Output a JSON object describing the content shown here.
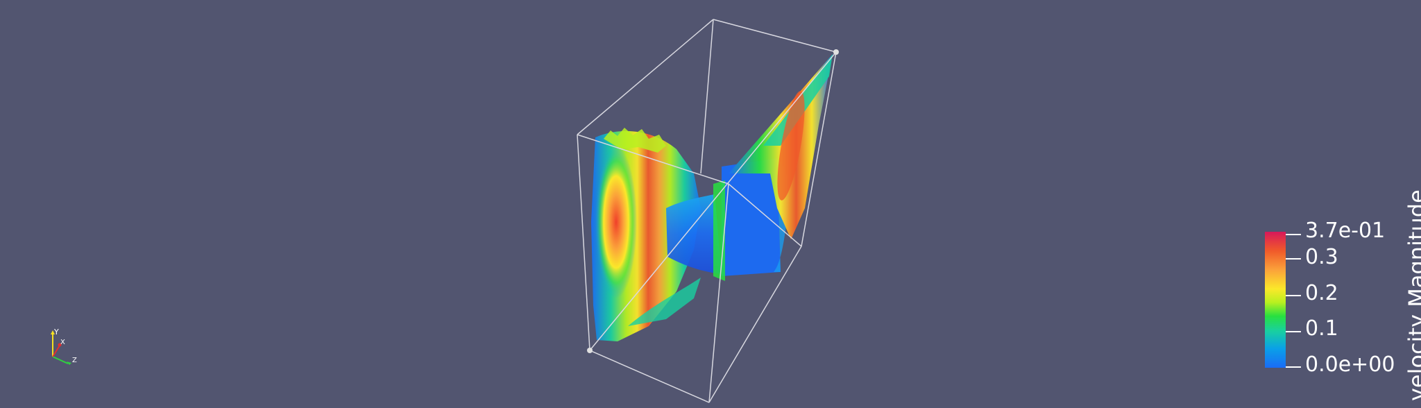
{
  "colors": {
    "background": "#525570",
    "bounding_box": "#d8d8e0",
    "colormap": [
      "#1a6cf5",
      "#0aa0e8",
      "#19d0a0",
      "#28e040",
      "#b8f020",
      "#fbe82a",
      "#fba23a",
      "#f05a2a",
      "#d8185a"
    ]
  },
  "colorbar": {
    "title": "velocity Magnitude",
    "ticks": [
      {
        "label": "3.7e-01",
        "value": 0.37
      },
      {
        "label": "0.3",
        "value": 0.3
      },
      {
        "label": "0.2",
        "value": 0.2
      },
      {
        "label": "0.1",
        "value": 0.1
      },
      {
        "label": "0.0e+00",
        "value": 0.0
      }
    ],
    "range": [
      0.0,
      0.37
    ]
  },
  "orientation_axes": {
    "labels": {
      "y": "Y",
      "x": "X",
      "z": "Z"
    },
    "colors": {
      "y": "#f5e020",
      "x": "#e03030",
      "z": "#30d040"
    }
  }
}
